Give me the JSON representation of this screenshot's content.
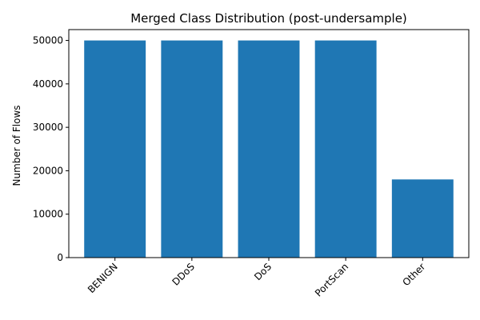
{
  "chart_data": {
    "type": "bar",
    "title": "Merged Class Distribution (post-undersample)",
    "xlabel": "",
    "ylabel": "Number of Flows",
    "categories": [
      "BENIGN",
      "DDoS",
      "DoS",
      "PortScan",
      "Other"
    ],
    "values": [
      50000,
      50000,
      50000,
      50000,
      18000
    ],
    "ylim": [
      0,
      52500
    ],
    "yticks": [
      0,
      10000,
      20000,
      30000,
      40000,
      50000
    ],
    "bar_color": "#1f77b4",
    "grid": false,
    "legend": "none",
    "xtick_rotation_deg": 45
  }
}
